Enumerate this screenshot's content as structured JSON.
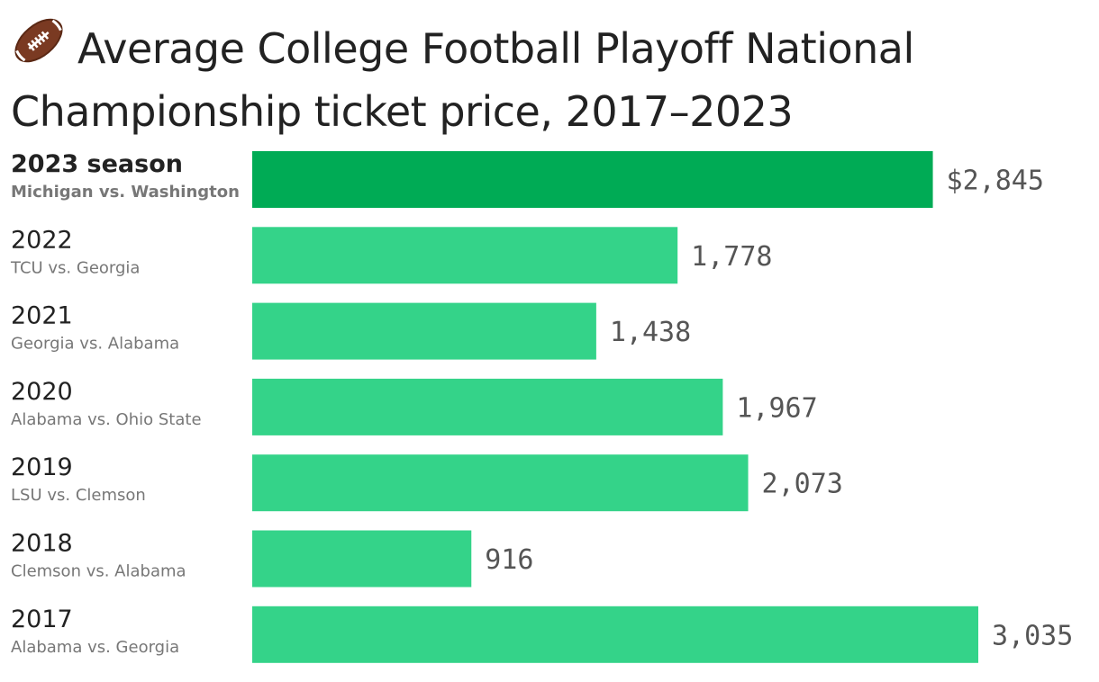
{
  "title": "Average College Football Playoff National Championship ticket price, 2017–2023",
  "icon": "football-icon",
  "colors": {
    "highlight": "#00ab55",
    "bar": "#34d389",
    "text": "#222222",
    "subtext": "#777777",
    "value": "#555555"
  },
  "chart_data": {
    "type": "bar",
    "orientation": "horizontal",
    "title": "Average College Football Playoff National Championship ticket price, 2017–2023",
    "xlim": [
      0,
      3035
    ],
    "grid": false,
    "categories": [
      {
        "year": "2023 season",
        "matchup": "Michigan vs. Washington",
        "value": 2845,
        "label": "$2,845",
        "highlight": true
      },
      {
        "year": "2022",
        "matchup": "TCU vs. Georgia",
        "value": 1778,
        "label": "1,778",
        "highlight": false
      },
      {
        "year": "2021",
        "matchup": "Georgia vs. Alabama",
        "value": 1438,
        "label": "1,438",
        "highlight": false
      },
      {
        "year": "2020",
        "matchup": "Alabama vs. Ohio State",
        "value": 1967,
        "label": "1,967",
        "highlight": false
      },
      {
        "year": "2019",
        "matchup": "LSU vs. Clemson",
        "value": 2073,
        "label": "2,073",
        "highlight": false
      },
      {
        "year": "2018",
        "matchup": "Clemson vs. Alabama",
        "value": 916,
        "label": "916",
        "highlight": false
      },
      {
        "year": "2017",
        "matchup": "Alabama vs. Georgia",
        "value": 3035,
        "label": "3,035",
        "highlight": false
      }
    ]
  }
}
